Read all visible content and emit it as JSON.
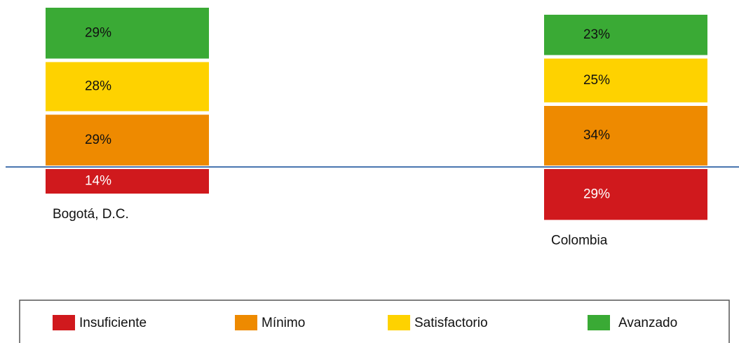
{
  "chart_data": {
    "type": "bar",
    "categories": [
      "Bogotá, D.C.",
      "Colombia"
    ],
    "series": [
      {
        "name": "Insuficiente",
        "color": "#d0191d",
        "values": [
          14,
          29
        ],
        "value_labels": [
          "14%",
          "29%"
        ]
      },
      {
        "name": "Mínimo",
        "color": "#ee8a00",
        "values": [
          29,
          34
        ],
        "value_labels": [
          "29%",
          "34%"
        ]
      },
      {
        "name": "Satisfactorio",
        "color": "#fed200",
        "values": [
          28,
          25
        ],
        "value_labels": [
          "28%",
          "25%"
        ]
      },
      {
        "name": "Avanzado",
        "color": "#3aaa35",
        "values": [
          29,
          23
        ],
        "value_labels": [
          "29%",
          "23%"
        ]
      }
    ]
  }
}
